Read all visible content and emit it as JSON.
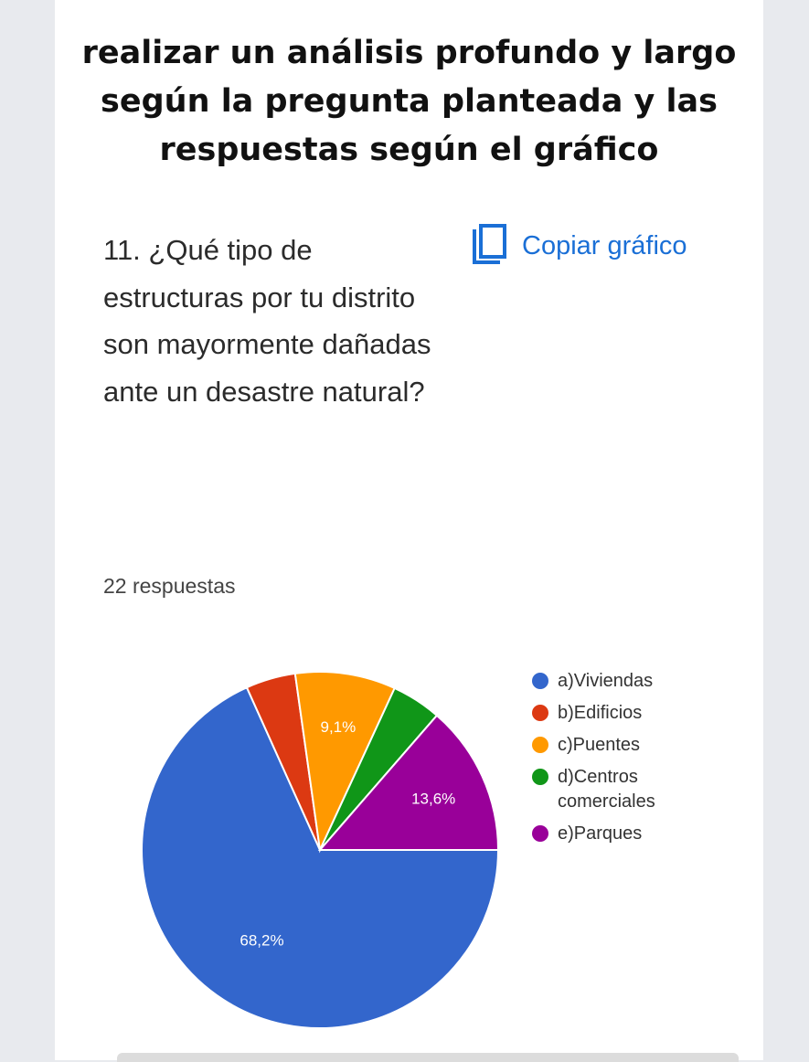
{
  "banner": {
    "text": "realizar un análisis profundo y largo según  la pregunta planteada y las respuestas según el gráfico"
  },
  "question": {
    "text": "11. ¿Qué tipo de estructuras por tu distrito son mayormente dañadas ante un desastre natural?"
  },
  "copy_button": {
    "label": "Copiar gráfico",
    "icon": "copy-icon"
  },
  "responses_label": "22 respuestas",
  "colors": {
    "viviendas": "#3366cc",
    "edificios": "#dc3912",
    "puentes": "#ff9900",
    "centros": "#109618",
    "parques": "#990099",
    "link": "#1a6fd6"
  },
  "chart_data": {
    "type": "pie",
    "title": "",
    "labels": [
      "a)Viviendas",
      "b)Edificios",
      "c)Puentes",
      "d)Centros comerciales",
      "e)Parques"
    ],
    "values": [
      68.2,
      4.5,
      9.1,
      4.5,
      13.6
    ],
    "data_labels": [
      "68,2%",
      "",
      "9,1%",
      "",
      "13,6%"
    ],
    "colors": [
      "#3366cc",
      "#dc3912",
      "#ff9900",
      "#109618",
      "#990099"
    ],
    "legend_position": "right"
  }
}
